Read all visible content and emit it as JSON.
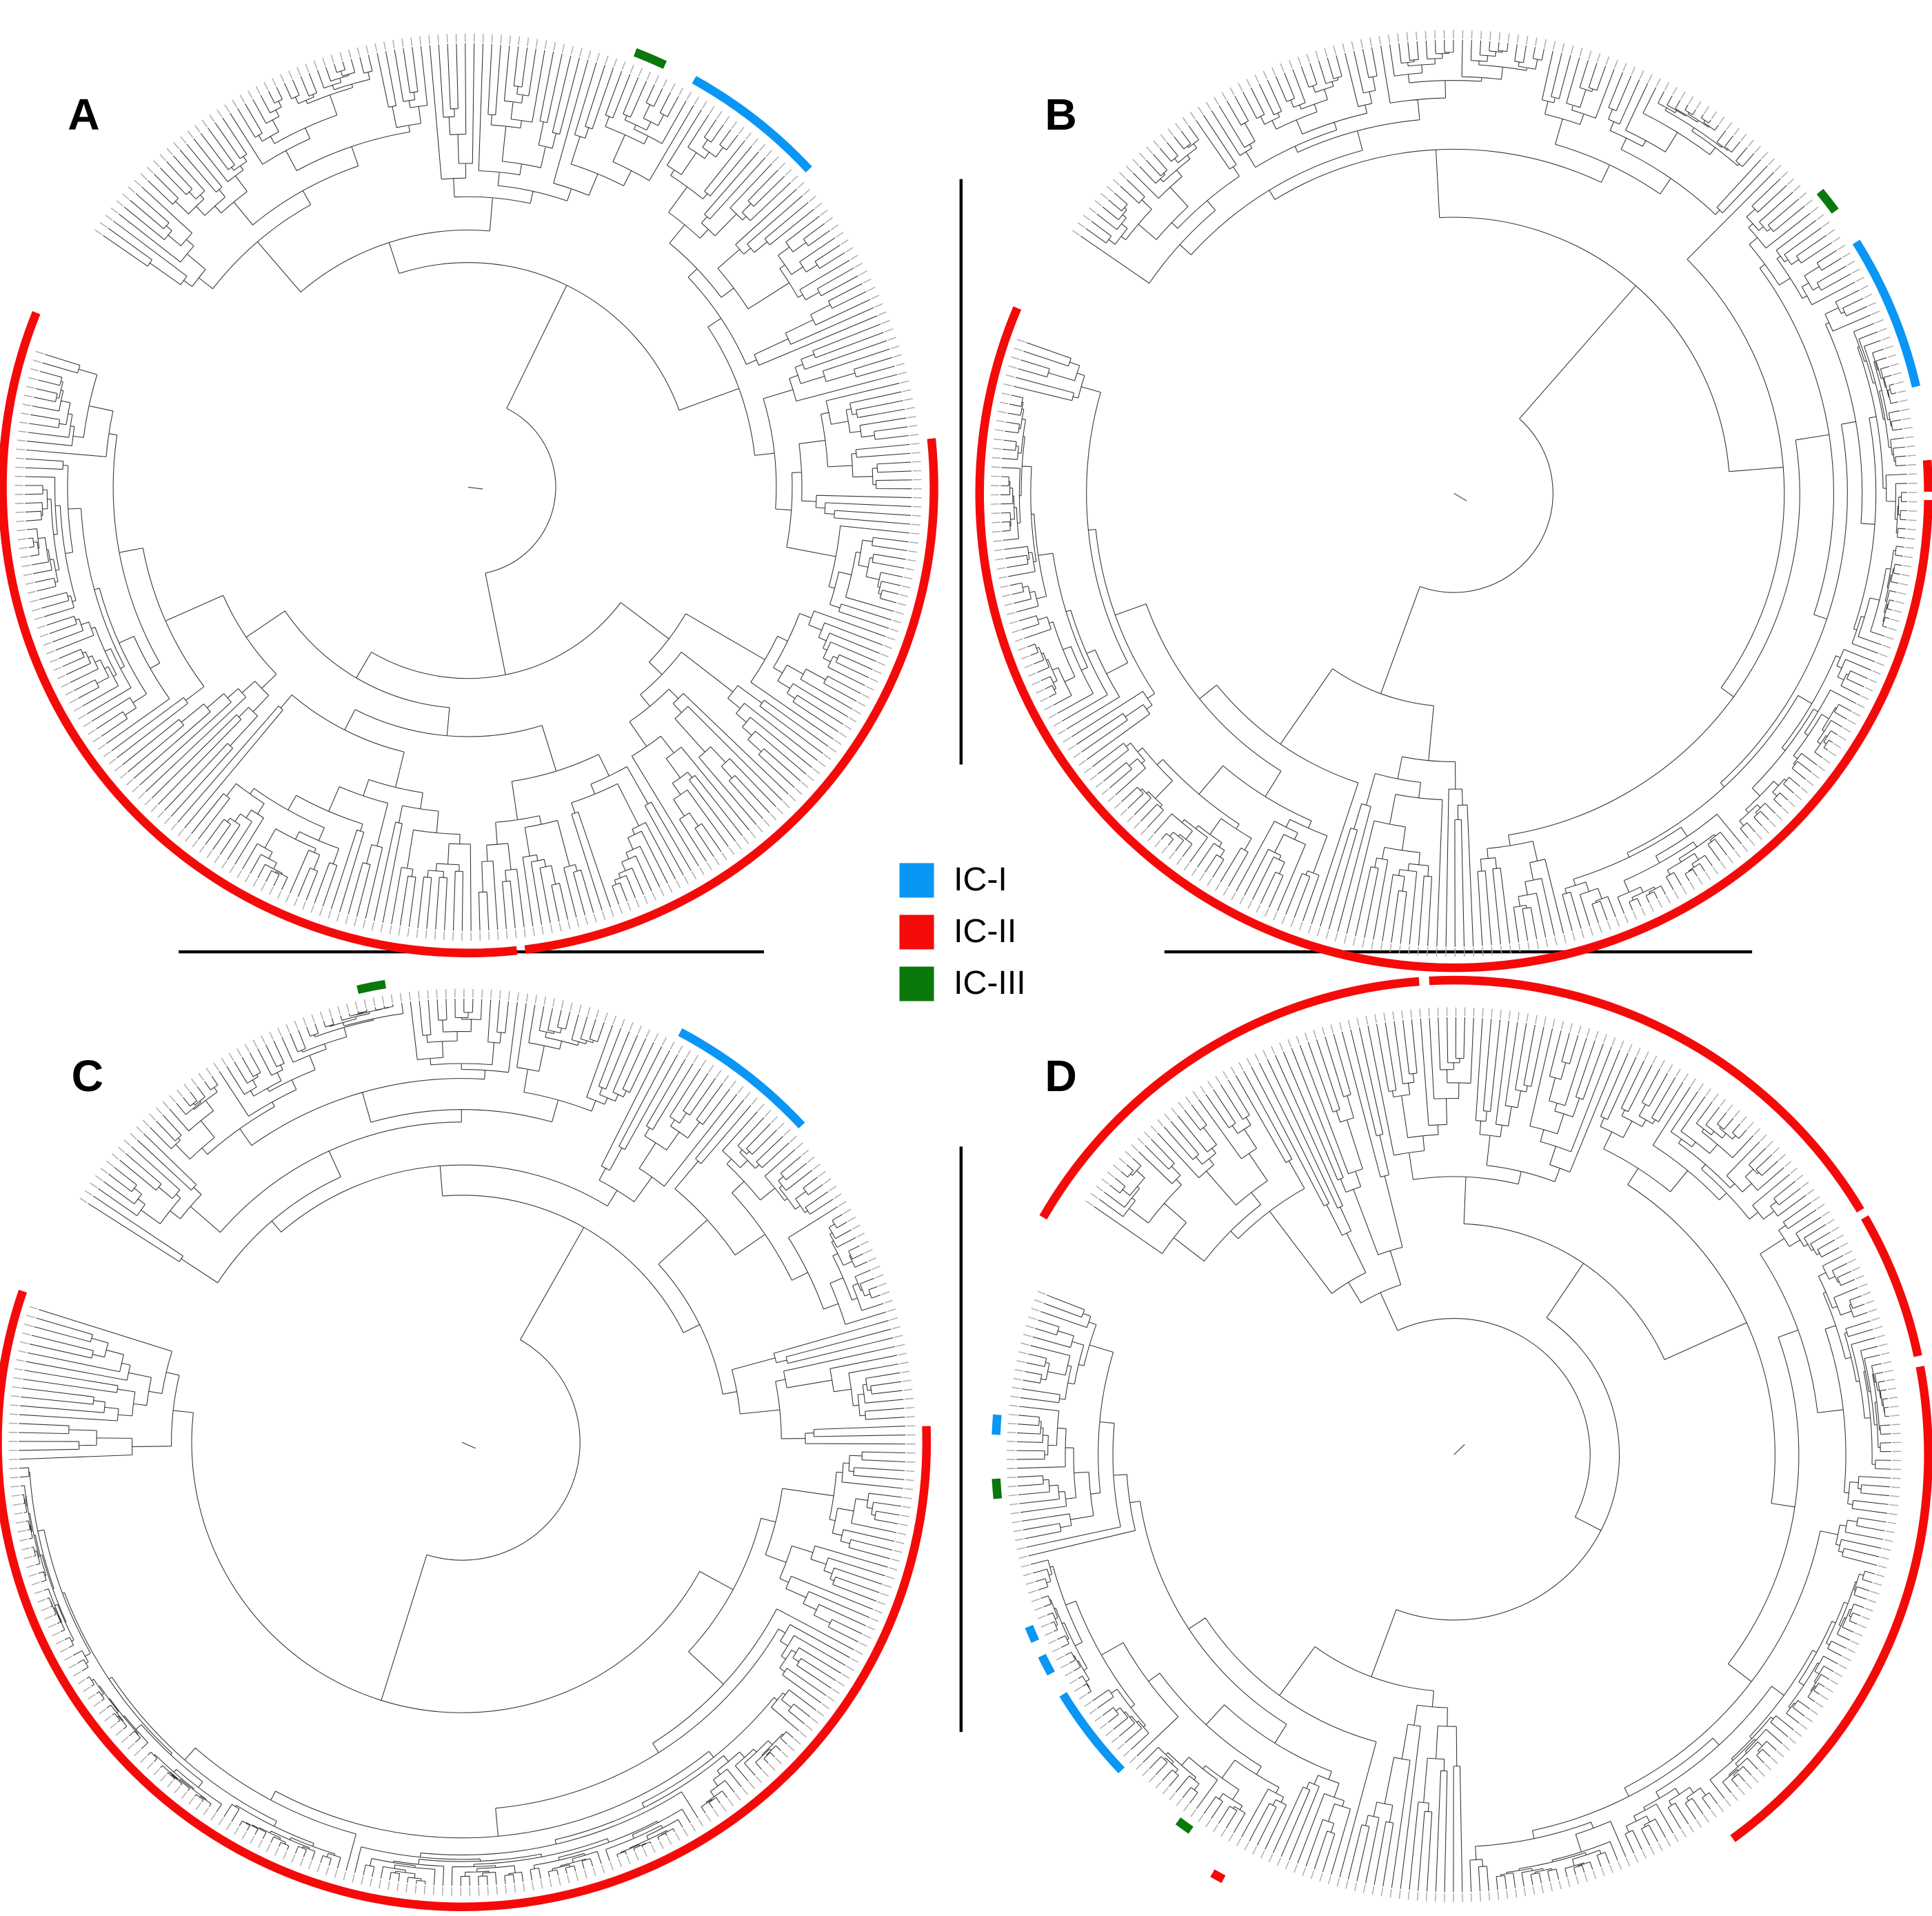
{
  "panels": [
    {
      "label": "A"
    },
    {
      "label": "B"
    },
    {
      "label": "C"
    },
    {
      "label": "D"
    }
  ],
  "legend": [
    {
      "label": "IC-I",
      "color": "#0a96f5"
    },
    {
      "label": "IC-II",
      "color": "#f50a0a"
    },
    {
      "label": "IC-III",
      "color": "#0a780a"
    }
  ]
}
